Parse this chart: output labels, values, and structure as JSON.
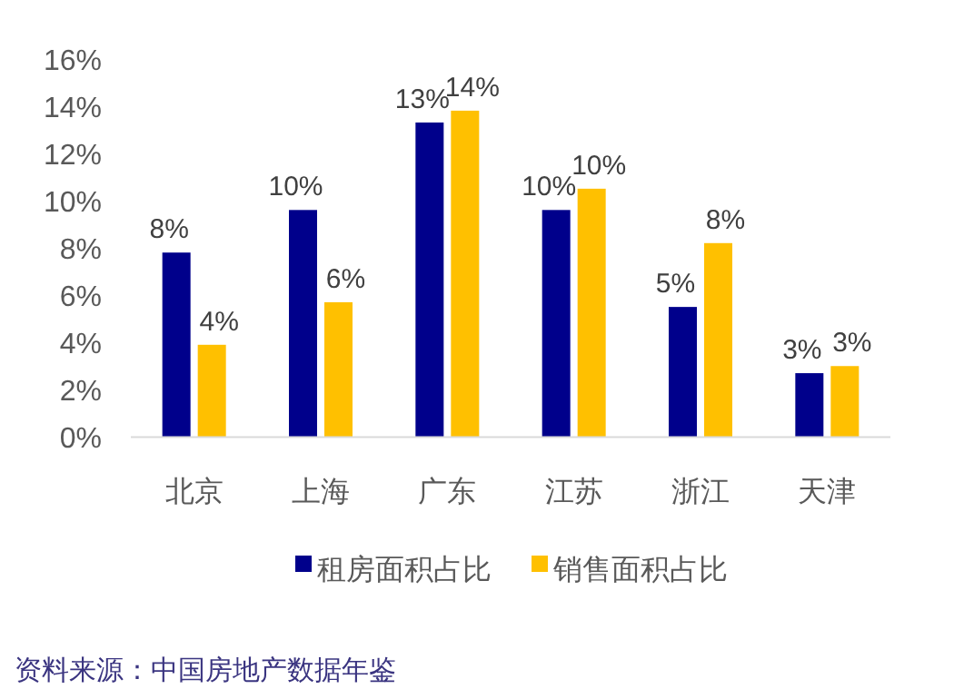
{
  "chart_data": {
    "type": "bar",
    "categories": [
      "北京",
      "上海",
      "广东",
      "江苏",
      "浙江",
      "天津"
    ],
    "series": [
      {
        "name": "租房面积占比",
        "color": "#00008b",
        "values": [
          7.8,
          9.6,
          13.3,
          9.6,
          5.5,
          2.7
        ],
        "value_labels": [
          "8%",
          "10%",
          "13%",
          "10%",
          "5%",
          "3%"
        ]
      },
      {
        "name": "销售面积占比",
        "color": "#ffc000",
        "values": [
          3.9,
          5.7,
          13.8,
          10.5,
          8.2,
          3.0
        ],
        "value_labels": [
          "4%",
          "6%",
          "14%",
          "10%",
          "8%",
          "3%"
        ]
      }
    ],
    "ylim": [
      0,
      16
    ],
    "yticks": [
      {
        "value": 0,
        "label": "0%"
      },
      {
        "value": 2,
        "label": "2%"
      },
      {
        "value": 4,
        "label": "4%"
      },
      {
        "value": 6,
        "label": "6%"
      },
      {
        "value": 8,
        "label": "8%"
      },
      {
        "value": 10,
        "label": "10%"
      },
      {
        "value": 12,
        "label": "12%"
      },
      {
        "value": 14,
        "label": "14%"
      },
      {
        "value": 16,
        "label": "16%"
      }
    ],
    "legend": "bottom",
    "annotations": [
      "资料来源：中国房地产数据年鉴"
    ]
  }
}
